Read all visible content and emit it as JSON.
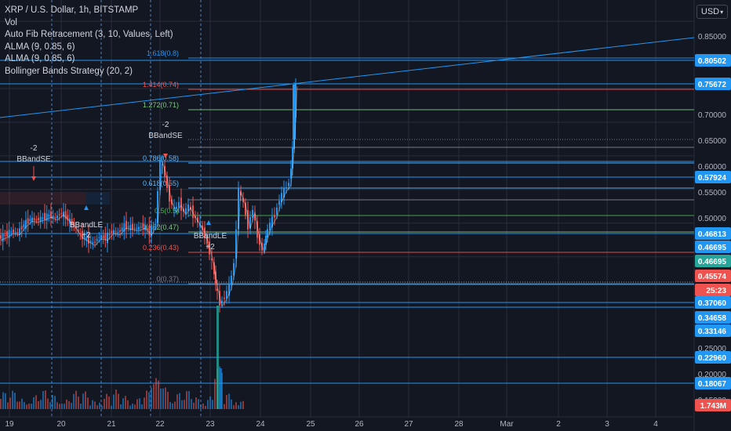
{
  "legend": {
    "symbol": "XRP / U.S. Dollar, 1h, BITSTAMP",
    "vol": "Vol",
    "fib": "Auto Fib Retracement (3, 10, Values, Left)",
    "alma1": "ALMA (9, 0.85, 6)",
    "alma2": "ALMA (9, 0.85, 6)",
    "bb": "Bollinger Bands Strategy (20, 2)"
  },
  "currency_button": "USD",
  "colors": {
    "background": "#131722",
    "up": "#2196f3",
    "down": "#ef5350",
    "grid": "#2a2e39",
    "text": "#d1d4dc"
  },
  "chart_data": {
    "type": "candlestick",
    "xlabel": "",
    "ylabel": "",
    "x_ticks": [
      "19",
      "20",
      "21",
      "22",
      "23",
      "24",
      "25",
      "26",
      "27",
      "28",
      "Mar",
      "2",
      "3",
      "4"
    ],
    "y_ticks": [
      "0.85000",
      "0.75000",
      "0.70000",
      "0.65000",
      "0.60000",
      "0.55000",
      "0.50000",
      "0.25000",
      "0.20000",
      "0.15000"
    ],
    "ylim_upper": [
      0.45,
      0.88
    ],
    "price_track": [
      [
        0,
        0.528
      ],
      [
        8,
        0.532
      ],
      [
        16,
        0.538
      ],
      [
        24,
        0.536
      ],
      [
        32,
        0.548
      ],
      [
        40,
        0.556
      ],
      [
        48,
        0.555
      ],
      [
        56,
        0.558
      ],
      [
        64,
        0.562
      ],
      [
        72,
        0.558
      ],
      [
        80,
        0.566
      ],
      [
        88,
        0.556
      ],
      [
        96,
        0.546
      ],
      [
        104,
        0.532
      ],
      [
        112,
        0.526
      ],
      [
        120,
        0.52
      ],
      [
        128,
        0.53
      ],
      [
        136,
        0.528
      ],
      [
        144,
        0.538
      ],
      [
        152,
        0.536
      ],
      [
        160,
        0.546
      ],
      [
        168,
        0.544
      ],
      [
        176,
        0.542
      ],
      [
        184,
        0.546
      ],
      [
        192,
        0.536
      ],
      [
        200,
        0.55
      ],
      [
        206,
        0.645
      ],
      [
        212,
        0.62
      ],
      [
        218,
        0.585
      ],
      [
        224,
        0.57
      ],
      [
        230,
        0.58
      ],
      [
        236,
        0.566
      ],
      [
        242,
        0.576
      ],
      [
        248,
        0.562
      ],
      [
        254,
        0.552
      ],
      [
        260,
        0.54
      ],
      [
        266,
        0.52
      ],
      [
        272,
        0.49
      ],
      [
        276,
        0.46
      ],
      [
        282,
        0.43
      ],
      [
        288,
        0.44
      ],
      [
        294,
        0.456
      ],
      [
        300,
        0.49
      ],
      [
        306,
        0.6
      ],
      [
        312,
        0.58
      ],
      [
        318,
        0.545
      ],
      [
        324,
        0.57
      ],
      [
        330,
        0.53
      ],
      [
        336,
        0.51
      ],
      [
        340,
        0.53
      ],
      [
        346,
        0.55
      ],
      [
        352,
        0.562
      ],
      [
        358,
        0.585
      ],
      [
        364,
        0.6
      ],
      [
        370,
        0.61
      ],
      [
        374,
        0.66
      ],
      [
        378,
        0.757
      ]
    ],
    "volume_label": "1.743M",
    "levels": [
      {
        "label": "0.80502",
        "color": "#2196f3"
      },
      {
        "label": "0.75672",
        "color": "#2196f3"
      },
      {
        "label": "0.57924",
        "color": "#2196f3"
      },
      {
        "label": "0.46813",
        "color": "#2196f3"
      },
      {
        "label": "0.46695",
        "color": "#2196f3"
      },
      {
        "label": "0.46695",
        "color": "#2196f3"
      },
      {
        "label": "0.45574",
        "color": "#ef5350"
      },
      {
        "label": "25:23",
        "color": "#ef5350"
      },
      {
        "label": "0.37060",
        "color": "#2196f3"
      },
      {
        "label": "0.34658",
        "color": "#2196f3"
      },
      {
        "label": "0.33146",
        "color": "#2196f3"
      },
      {
        "label": "0.22960",
        "color": "#2196f3"
      },
      {
        "label": "0.18067",
        "color": "#2196f3"
      },
      {
        "label": "1.743M",
        "color": "#ef5350"
      }
    ],
    "fib_levels": [
      {
        "label": "1.618(0.8)",
        "value": 0.8,
        "color": "#2196f3"
      },
      {
        "label": "1.414(0.74)",
        "value": 0.74,
        "color": "#ef5350"
      },
      {
        "label": "1.272(0.71)",
        "value": 0.71,
        "color": "#81c784"
      },
      {
        "label": "0.786(0.58)",
        "value": 0.58,
        "color": "#64b5f6"
      },
      {
        "label": "0.618(0.55)",
        "value": 0.55,
        "color": "#64b5f6"
      },
      {
        "label": "0.5(0.5)",
        "value": 0.5,
        "color": "#4caf50"
      },
      {
        "label": "0.382(0.47)",
        "value": 0.47,
        "color": "#81c784"
      },
      {
        "label": "0.236(0.43)",
        "value": 0.43,
        "color": "#ef5350"
      },
      {
        "label": "0(0.37)",
        "value": 0.37,
        "color": "#787b86"
      }
    ],
    "annotations": [
      {
        "text": "-2",
        "kind": "minus"
      },
      {
        "text": "BBandSE",
        "kind": "label"
      },
      {
        "text": "BBandLE",
        "kind": "label"
      },
      {
        "text": "+2",
        "kind": "plus"
      },
      {
        "text": "-2",
        "kind": "minus"
      },
      {
        "text": "BBandSE",
        "kind": "label"
      },
      {
        "text": "BBandLE",
        "kind": "label"
      },
      {
        "text": "+2",
        "kind": "plus"
      }
    ]
  }
}
